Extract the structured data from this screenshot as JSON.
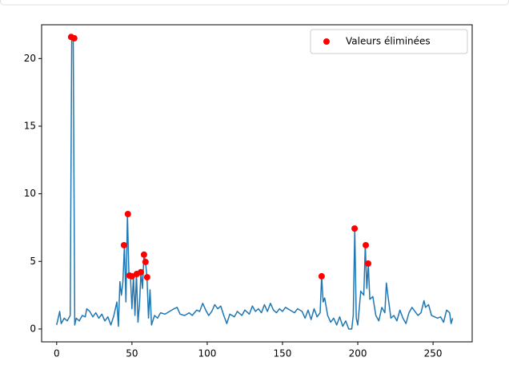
{
  "chart_data": {
    "type": "line",
    "legend": "upper right",
    "xlim": [
      -10,
      276
    ],
    "ylim": [
      -0.95,
      22.5
    ],
    "xticks": [
      0,
      50,
      100,
      150,
      200,
      250
    ],
    "yticks": [
      0,
      5,
      10,
      15,
      20
    ],
    "series": [
      {
        "type": "line",
        "color": "#1f77b4",
        "x": [
          0,
          2,
          3,
          5,
          7,
          9,
          10,
          11,
          12,
          13,
          15,
          17,
          19,
          20,
          22,
          24,
          26,
          28,
          30,
          32,
          34,
          36,
          38,
          40,
          41,
          42,
          43,
          44,
          45,
          46,
          47,
          48,
          49,
          50,
          51,
          52,
          53,
          54,
          55,
          56,
          57,
          58,
          59,
          60,
          61,
          62,
          63,
          65,
          67,
          69,
          72,
          75,
          78,
          80,
          82,
          85,
          88,
          90,
          93,
          95,
          97,
          99,
          101,
          103,
          105,
          107,
          109,
          111,
          113,
          115,
          118,
          120,
          123,
          125,
          128,
          130,
          132,
          134,
          136,
          138,
          140,
          142,
          144,
          146,
          148,
          150,
          152,
          155,
          158,
          160,
          163,
          165,
          167,
          169,
          171,
          173,
          175,
          176,
          177,
          178,
          180,
          182,
          184,
          186,
          188,
          190,
          192,
          194,
          196,
          197,
          198,
          199,
          200,
          202,
          204,
          205,
          206,
          207,
          208,
          210,
          212,
          214,
          216,
          218,
          219,
          220,
          222,
          224,
          226,
          228,
          230,
          232,
          234,
          236,
          238,
          240,
          242,
          244,
          245,
          247,
          249,
          251,
          253,
          255,
          257,
          259,
          261,
          262,
          263
        ],
        "values": [
          0.3,
          1.3,
          0.4,
          0.8,
          0.6,
          1.0,
          21.6,
          21.5,
          0.3,
          0.8,
          0.6,
          1.0,
          0.9,
          1.5,
          1.3,
          0.9,
          1.2,
          0.8,
          1.1,
          0.6,
          0.9,
          0.3,
          1.0,
          2.0,
          0.2,
          3.5,
          2.5,
          3.5,
          6.2,
          2.0,
          8.5,
          4.0,
          3.9,
          1.5,
          3.9,
          1.0,
          4.1,
          0.5,
          1.8,
          4.2,
          3.0,
          5.5,
          5.0,
          3.8,
          0.8,
          2.9,
          0.3,
          1.0,
          0.8,
          1.2,
          1.1,
          1.3,
          1.5,
          1.6,
          1.1,
          1.0,
          1.2,
          1.0,
          1.4,
          1.3,
          1.9,
          1.4,
          1.0,
          1.3,
          1.8,
          1.5,
          1.7,
          1.0,
          0.4,
          1.1,
          0.9,
          1.3,
          1.0,
          1.4,
          1.1,
          1.7,
          1.3,
          1.5,
          1.2,
          1.8,
          1.3,
          1.9,
          1.4,
          1.2,
          1.5,
          1.3,
          1.6,
          1.4,
          1.2,
          1.5,
          1.3,
          0.8,
          1.4,
          0.7,
          1.5,
          0.9,
          1.2,
          3.9,
          2.0,
          2.3,
          1.0,
          0.5,
          0.8,
          0.3,
          0.9,
          0.2,
          0.6,
          0.0,
          0.0,
          1.0,
          7.4,
          0.8,
          0.3,
          2.8,
          2.5,
          6.2,
          3.0,
          4.8,
          2.2,
          2.4,
          1.0,
          0.6,
          1.6,
          1.2,
          3.4,
          2.5,
          0.8,
          1.0,
          0.6,
          1.4,
          0.8,
          0.4,
          1.2,
          1.6,
          1.3,
          1.0,
          1.2,
          2.1,
          1.6,
          1.8,
          1.0,
          0.9,
          0.8,
          0.9,
          0.5,
          1.4,
          1.2,
          0.4,
          0.8
        ]
      },
      {
        "type": "scatter",
        "name": "Valeurs éliminées",
        "color": "#ff0000",
        "x": [
          9.6,
          11.7,
          44.7,
          47.3,
          48.4,
          50,
          53.2,
          55.9,
          58,
          59,
          60.1,
          176,
          197.9,
          205.3,
          206.9
        ],
        "values": [
          21.6,
          21.5,
          6.2,
          8.5,
          3.95,
          3.9,
          4.07,
          4.2,
          5.5,
          4.96,
          3.83,
          3.9,
          7.43,
          6.2,
          4.84
        ]
      }
    ]
  }
}
